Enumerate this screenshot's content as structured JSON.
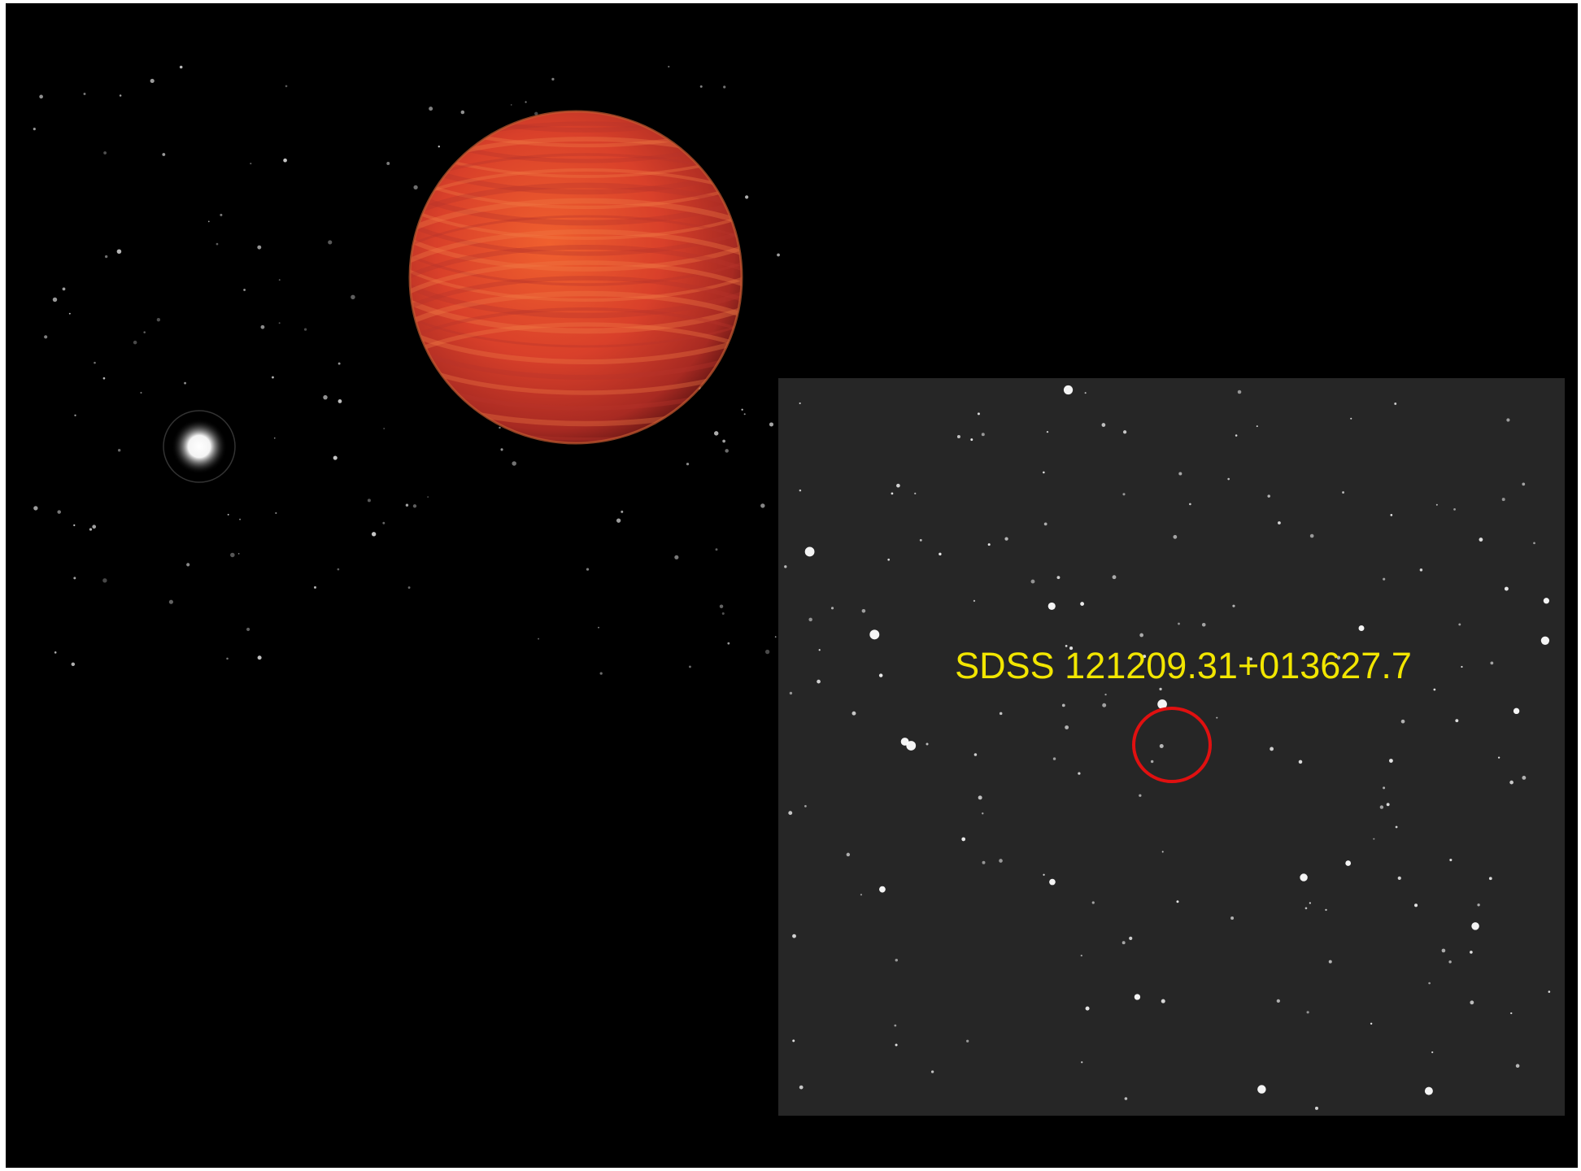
{
  "label": "SDSS 121209.31+013627.7"
}
